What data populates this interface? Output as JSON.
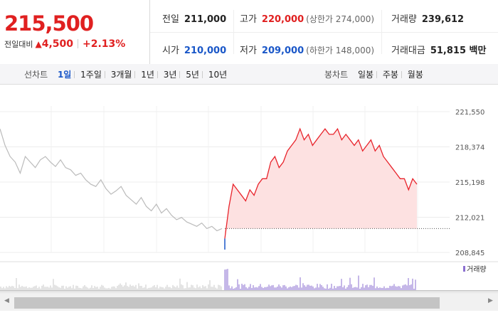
{
  "price": {
    "current": "215,500",
    "change_label": "전일대비",
    "change_arrow": "▲",
    "change": "4,500",
    "change_pct": "+2.13%"
  },
  "stats": {
    "prev_label": "전일",
    "prev": "211,000",
    "high_label": "고가",
    "high": "220,000",
    "upper_label": "(상한가 274,000)",
    "volume_label": "거래량",
    "volume": "239,612",
    "open_label": "시가",
    "open": "210,000",
    "low_label": "저가",
    "low": "209,000",
    "lower_label": "(하한가 148,000)",
    "amount_label": "거래대금",
    "amount": "51,815 백만"
  },
  "toolbar": {
    "line_label": "선차트",
    "periods": [
      "1일",
      "1주일",
      "3개월",
      "1년",
      "3년",
      "5년",
      "10년"
    ],
    "active_period": "1일",
    "candle_label": "봉차트",
    "candles": [
      "일봉",
      "주봉",
      "월봉"
    ]
  },
  "chart_data": {
    "type": "line",
    "ylim": [
      208845,
      221550
    ],
    "yticks": [
      "221,550",
      "218,374",
      "215,198",
      "212,021",
      "208,845"
    ],
    "prev_close": 211000,
    "volume_legend": "거래량",
    "series": [
      {
        "values": [
          220000,
          218500,
          217500,
          217000,
          216000,
          217500,
          217000,
          216500,
          217200,
          217500,
          217000,
          216600,
          217200,
          216500,
          216300,
          215800,
          216000,
          215400,
          215000,
          214800,
          215400,
          214600,
          214100,
          214400,
          214800,
          214000,
          213600,
          213200,
          213800,
          213000,
          212600,
          213200,
          212400,
          212800,
          212200,
          211800,
          212000,
          211600,
          211400,
          211200,
          211500,
          211000,
          211200,
          210800,
          211000
        ]
      },
      {
        "values": [
          210100,
          213000,
          215000,
          214500,
          214000,
          213500,
          214500,
          214000,
          215000,
          215500,
          215500,
          217000,
          217500,
          216500,
          217000,
          218000,
          218500,
          219000,
          220000,
          219000,
          219500,
          218500,
          219000,
          219500,
          220000,
          219500,
          219500,
          220000,
          219000,
          219500,
          219000,
          218500,
          219000,
          218000,
          218500,
          219000,
          218000,
          218500,
          217500,
          217000,
          216500,
          216000,
          215500,
          215500,
          214500,
          215500,
          215000
        ]
      }
    ]
  }
}
